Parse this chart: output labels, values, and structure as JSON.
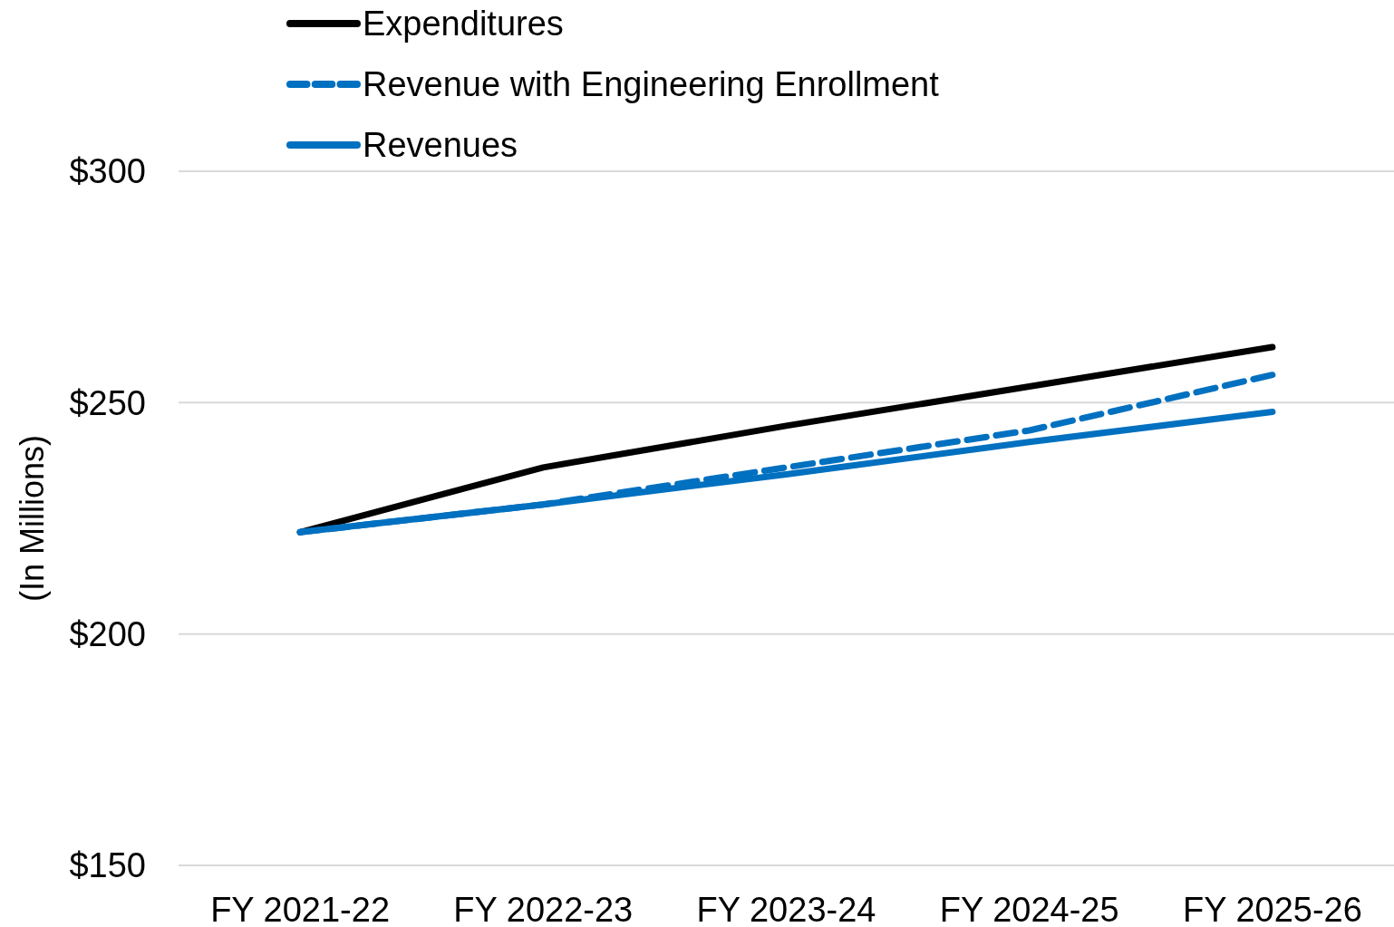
{
  "chart_data": {
    "type": "line",
    "ylabel": "(In Millions)",
    "categories": [
      "FY 2021-22",
      "FY 2022-23",
      "FY 2023-24",
      "FY 2024-25",
      "FY 2025-26"
    ],
    "series": [
      {
        "name": "Expenditures",
        "color": "#000000",
        "line_style": "solid",
        "values": [
          222,
          236,
          245,
          253.5,
          262
        ]
      },
      {
        "name": "Revenue with Engineering Enrollment",
        "color": "#0070c0",
        "line_style": "dashed",
        "values": [
          222,
          228,
          236,
          244,
          256
        ]
      },
      {
        "name": "Revenues",
        "color": "#0070c0",
        "line_style": "solid",
        "values": [
          222,
          228,
          234.5,
          241.5,
          248
        ]
      }
    ],
    "ylim": [
      150,
      300
    ],
    "yticks": [
      {
        "value": 150,
        "label": "$150"
      },
      {
        "value": 200,
        "label": "$200"
      },
      {
        "value": 250,
        "label": "$250"
      },
      {
        "value": 300,
        "label": "$300"
      }
    ],
    "grid": "y",
    "legend": "top left",
    "marker": "none"
  }
}
